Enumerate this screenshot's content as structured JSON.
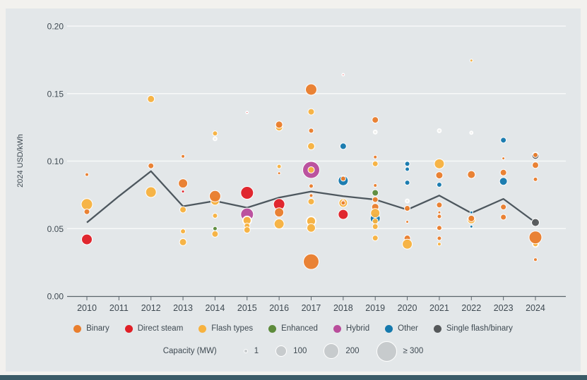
{
  "chart_data": {
    "type": "scatter",
    "subtype": "bubble",
    "title": "",
    "xlabel": "",
    "ylabel": "2024 USD/kWh",
    "ylim": [
      0,
      0.2
    ],
    "yticks": [
      "0.00",
      "0.05",
      "0.10",
      "0.15",
      "0.20"
    ],
    "years": [
      2010,
      2011,
      2012,
      2013,
      2014,
      2015,
      2016,
      2017,
      2018,
      2019,
      2020,
      2021,
      2022,
      2023,
      2024
    ],
    "grid": "horizontal-white",
    "legend_position": "bottom",
    "categories": [
      {
        "key": "binary",
        "label": "Binary",
        "color": "#e97e2d"
      },
      {
        "key": "direct_steam",
        "label": "Direct steam",
        "color": "#e01f26"
      },
      {
        "key": "flash",
        "label": "Flash types",
        "color": "#f7b23f"
      },
      {
        "key": "enhanced",
        "label": "Enhanced",
        "color": "#5d8b3b"
      },
      {
        "key": "hybrid",
        "label": "Hybrid",
        "color": "#b94d9b"
      },
      {
        "key": "other",
        "label": "Other",
        "color": "#1579ad"
      },
      {
        "key": "single_flash_binary",
        "label": "Single flash/binary",
        "color": "#55585a"
      }
    ],
    "pale_marker_color": "#f0efec",
    "size_legend": {
      "label": "Capacity (MW)",
      "items": [
        {
          "label": "1",
          "d": 4
        },
        {
          "label": "100",
          "d": 14
        },
        {
          "label": "200",
          "d": 20
        },
        {
          "label": "≥ 300",
          "d": 27
        }
      ]
    },
    "average_line": {
      "color": "#4d575e",
      "points": [
        [
          2010,
          0.0545
        ],
        [
          2011,
          0.074
        ],
        [
          2012,
          0.0925
        ],
        [
          2013,
          0.0665
        ],
        [
          2014,
          0.0705
        ],
        [
          2015,
          0.0655
        ],
        [
          2016,
          0.073
        ],
        [
          2017,
          0.0775
        ],
        [
          2018,
          0.074
        ],
        [
          2019,
          0.0715
        ],
        [
          2020,
          0.064
        ],
        [
          2021,
          0.0745
        ],
        [
          2022,
          0.0615
        ],
        [
          2023,
          0.072
        ],
        [
          2024,
          0.0545
        ]
      ]
    },
    "points": [
      [
        2010,
        0.09,
        2.5,
        "binary"
      ],
      [
        2010,
        0.068,
        8,
        "flash"
      ],
      [
        2010,
        0.0625,
        4,
        "binary"
      ],
      [
        2010,
        0.042,
        7.5,
        "direct_steam"
      ],
      [
        2012,
        0.146,
        5,
        "flash"
      ],
      [
        2012,
        0.0965,
        4,
        "binary"
      ],
      [
        2012,
        0.077,
        7.5,
        "flash"
      ],
      [
        2013,
        0.1035,
        2.5,
        "binary"
      ],
      [
        2013,
        0.0835,
        6.5,
        "binary"
      ],
      [
        2013,
        0.0775,
        2,
        "direct_steam"
      ],
      [
        2013,
        0.064,
        4.5,
        "flash"
      ],
      [
        2013,
        0.048,
        3.5,
        "flash"
      ],
      [
        2013,
        0.04,
        5,
        "flash"
      ],
      [
        2014,
        0.1205,
        3.5,
        "flash"
      ],
      [
        2014,
        0.1165,
        2.5,
        "pale"
      ],
      [
        2014,
        0.0705,
        6,
        "flash"
      ],
      [
        2014,
        0.074,
        8,
        "binary"
      ],
      [
        2014,
        0.0595,
        3.5,
        "flash"
      ],
      [
        2014,
        0.05,
        3,
        "enhanced"
      ],
      [
        2014,
        0.046,
        4.5,
        "flash"
      ],
      [
        2015,
        0.136,
        1.5,
        "direct_steam",
        "ring"
      ],
      [
        2015,
        0.0765,
        9,
        "direct_steam"
      ],
      [
        2015,
        0.0605,
        9,
        "hybrid"
      ],
      [
        2015,
        0.056,
        6,
        "flash",
        "ring"
      ],
      [
        2015,
        0.052,
        4,
        "flash"
      ],
      [
        2015,
        0.049,
        4.5,
        "flash"
      ],
      [
        2016,
        0.125,
        5,
        "flash"
      ],
      [
        2016,
        0.127,
        5,
        "binary"
      ],
      [
        2016,
        0.096,
        3,
        "flash"
      ],
      [
        2016,
        0.091,
        2,
        "binary"
      ],
      [
        2016,
        0.068,
        8,
        "direct_steam"
      ],
      [
        2016,
        0.062,
        6.5,
        "binary"
      ],
      [
        2016,
        0.0535,
        7,
        "flash"
      ],
      [
        2017,
        0.153,
        8,
        "binary"
      ],
      [
        2017,
        0.1365,
        4.5,
        "flash"
      ],
      [
        2017,
        0.1225,
        3.5,
        "binary"
      ],
      [
        2017,
        0.111,
        5,
        "flash"
      ],
      [
        2017,
        0.0935,
        12,
        "hybrid"
      ],
      [
        2017,
        0.0935,
        4.5,
        "flash"
      ],
      [
        2017,
        0.0815,
        3,
        "binary"
      ],
      [
        2017,
        0.0745,
        2.5,
        "binary"
      ],
      [
        2017,
        0.07,
        4.5,
        "flash"
      ],
      [
        2017,
        0.0555,
        6.5,
        "flash",
        "ring"
      ],
      [
        2017,
        0.0505,
        6,
        "flash"
      ],
      [
        2017,
        0.0255,
        11,
        "binary"
      ],
      [
        2018,
        0.164,
        1.5,
        "direct_steam",
        "ring"
      ],
      [
        2018,
        0.111,
        4.5,
        "other"
      ],
      [
        2018,
        0.0855,
        7,
        "other"
      ],
      [
        2018,
        0.087,
        3.5,
        "binary"
      ],
      [
        2018,
        0.069,
        6,
        "flash"
      ],
      [
        2018,
        0.0705,
        1.5,
        "direct_steam"
      ],
      [
        2018,
        0.069,
        3,
        "binary"
      ],
      [
        2018,
        0.0605,
        7,
        "direct_steam"
      ],
      [
        2019,
        0.1305,
        4.5,
        "binary"
      ],
      [
        2019,
        0.1215,
        2.5,
        "pale"
      ],
      [
        2019,
        0.103,
        2.5,
        "binary"
      ],
      [
        2019,
        0.098,
        4,
        "flash"
      ],
      [
        2019,
        0.082,
        2.5,
        "binary"
      ],
      [
        2019,
        0.0765,
        4.5,
        "enhanced"
      ],
      [
        2019,
        0.0715,
        4,
        "binary"
      ],
      [
        2019,
        0.066,
        5,
        "binary"
      ],
      [
        2019,
        0.0575,
        7,
        "other"
      ],
      [
        2019,
        0.0615,
        6.5,
        "flash"
      ],
      [
        2019,
        0.0555,
        4,
        "flash"
      ],
      [
        2019,
        0.0515,
        4,
        "flash"
      ],
      [
        2019,
        0.043,
        4,
        "flash"
      ],
      [
        2020,
        0.098,
        3.5,
        "other"
      ],
      [
        2020,
        0.094,
        3,
        "other"
      ],
      [
        2020,
        0.084,
        3.5,
        "other"
      ],
      [
        2020,
        0.0705,
        2.5,
        "pale"
      ],
      [
        2020,
        0.065,
        4,
        "binary"
      ],
      [
        2020,
        0.055,
        2,
        "binary"
      ],
      [
        2020,
        0.0428,
        4.5,
        "binary"
      ],
      [
        2020,
        0.0385,
        7,
        "flash"
      ],
      [
        2021,
        0.1225,
        2.5,
        "pale"
      ],
      [
        2021,
        0.098,
        7,
        "flash"
      ],
      [
        2021,
        0.0895,
        5,
        "binary"
      ],
      [
        2021,
        0.0825,
        3.5,
        "other"
      ],
      [
        2021,
        0.0675,
        4,
        "binary"
      ],
      [
        2021,
        0.062,
        2,
        "binary"
      ],
      [
        2021,
        0.059,
        3,
        "binary"
      ],
      [
        2021,
        0.0505,
        3.5,
        "binary"
      ],
      [
        2021,
        0.0428,
        3,
        "binary"
      ],
      [
        2021,
        0.0385,
        2.5,
        "flash"
      ],
      [
        2022,
        0.1745,
        2,
        "flash"
      ],
      [
        2022,
        0.121,
        2,
        "pale"
      ],
      [
        2022,
        0.09,
        5.5,
        "binary"
      ],
      [
        2022,
        0.062,
        2,
        "other"
      ],
      [
        2022,
        0.0565,
        5.5,
        "flash"
      ],
      [
        2022,
        0.0575,
        4.5,
        "binary"
      ],
      [
        2022,
        0.0515,
        2,
        "other"
      ],
      [
        2023,
        0.1155,
        4,
        "other"
      ],
      [
        2023,
        0.102,
        2,
        "binary"
      ],
      [
        2023,
        0.085,
        5.5,
        "other"
      ],
      [
        2023,
        0.0915,
        4.5,
        "binary"
      ],
      [
        2023,
        0.066,
        4,
        "binary"
      ],
      [
        2023,
        0.0585,
        4,
        "binary"
      ],
      [
        2024,
        0.104,
        5,
        "single_flash_binary"
      ],
      [
        2024,
        0.1045,
        3.5,
        "binary"
      ],
      [
        2024,
        0.097,
        4.5,
        "binary"
      ],
      [
        2024,
        0.0865,
        3,
        "binary"
      ],
      [
        2024,
        0.0545,
        5.5,
        "single_flash_binary"
      ],
      [
        2024,
        0.0385,
        4,
        "flash",
        "ring"
      ],
      [
        2024,
        0.0435,
        9,
        "binary"
      ],
      [
        2024,
        0.027,
        2.5,
        "binary"
      ]
    ],
    "style": {
      "panel_bg": "#e3e7e9",
      "margin_bg": "#f2f1ee",
      "gridline": "#f7f9f9",
      "axis": "#5a646b",
      "text": "#3f4a52",
      "footer_bar": "#3a5a66"
    }
  }
}
